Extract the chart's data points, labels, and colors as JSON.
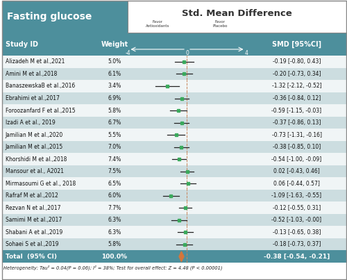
{
  "title_left": "Fasting glucose",
  "title_right": "Std. Mean Difference",
  "studies": [
    {
      "id": "Alizadeh M et al.,2021",
      "weight": "5.0%",
      "smd": -0.19,
      "ci_lo": -0.8,
      "ci_hi": 0.43,
      "smd_str": "-0.19 [-0.80, 0.43]"
    },
    {
      "id": "Amini M et al.,2018",
      "weight": "6.1%",
      "smd": -0.2,
      "ci_lo": -0.73,
      "ci_hi": 0.34,
      "smd_str": "-0.20 [-0.73, 0.34]"
    },
    {
      "id": "BanaszewskaB et al.,2016",
      "weight": "3.4%",
      "smd": -1.32,
      "ci_lo": -2.12,
      "ci_hi": -0.52,
      "smd_str": "-1.32 [-2.12, -0.52]"
    },
    {
      "id": "Ebrahimi et al.,2017",
      "weight": "6.9%",
      "smd": -0.36,
      "ci_lo": -0.84,
      "ci_hi": 0.12,
      "smd_str": "-0.36 [-0.84, 0.12]"
    },
    {
      "id": "Foroozanfard F et al.,2015",
      "weight": "5.8%",
      "smd": -0.59,
      "ci_lo": -1.15,
      "ci_hi": -0.03,
      "smd_str": "-0.59 [-1.15, -0.03]"
    },
    {
      "id": "Izadi A et al., 2019",
      "weight": "6.7%",
      "smd": -0.37,
      "ci_lo": -0.86,
      "ci_hi": 0.13,
      "smd_str": "-0.37 [-0.86, 0.13]"
    },
    {
      "id": "Jamilian M et al.,2020",
      "weight": "5.5%",
      "smd": -0.73,
      "ci_lo": -1.31,
      "ci_hi": -0.16,
      "smd_str": "-0.73 [-1.31, -0.16]"
    },
    {
      "id": "Jamilian M et al.,2015",
      "weight": "7.0%",
      "smd": -0.38,
      "ci_lo": -0.85,
      "ci_hi": 0.1,
      "smd_str": "-0.38 [-0.85, 0.10]"
    },
    {
      "id": "Khorshidi M et al.,2018",
      "weight": "7.4%",
      "smd": -0.54,
      "ci_lo": -1.0,
      "ci_hi": -0.09,
      "smd_str": "-0.54 [-1.00, -0.09]"
    },
    {
      "id": "Mansour et al., A2021",
      "weight": "7.5%",
      "smd": 0.02,
      "ci_lo": -0.43,
      "ci_hi": 0.46,
      "smd_str": "0.02 [-0.43, 0.46]"
    },
    {
      "id": "Mirmasoumi G et al., 2018",
      "weight": "6.5%",
      "smd": 0.06,
      "ci_lo": -0.44,
      "ci_hi": 0.57,
      "smd_str": "0.06 [-0.44, 0.57]"
    },
    {
      "id": "Rafraf M et al.,2012",
      "weight": "6.0%",
      "smd": -1.09,
      "ci_lo": -1.63,
      "ci_hi": -0.55,
      "smd_str": "-1.09 [-1.63, -0.55]"
    },
    {
      "id": "Rezvan N et al.,2017",
      "weight": "7.7%",
      "smd": -0.12,
      "ci_lo": -0.55,
      "ci_hi": 0.31,
      "smd_str": "-0.12 [-0.55, 0.31]"
    },
    {
      "id": "Samimi M et al.,2017",
      "weight": "6.3%",
      "smd": -0.52,
      "ci_lo": -1.03,
      "ci_hi": -0.0,
      "smd_str": "-0.52 [-1.03, -0.00]"
    },
    {
      "id": "Shabani A et al.,2019",
      "weight": "6.3%",
      "smd": -0.13,
      "ci_lo": -0.65,
      "ci_hi": 0.38,
      "smd_str": "-0.13 [-0.65, 0.38]"
    },
    {
      "id": "Sohaei S et al.,2019",
      "weight": "5.8%",
      "smd": -0.18,
      "ci_lo": -0.73,
      "ci_hi": 0.37,
      "smd_str": "-0.18 [-0.73, 0.37]"
    }
  ],
  "total": {
    "id": "Total  (95% CI)",
    "weight": "100.0%",
    "smd": -0.38,
    "ci_lo": -0.54,
    "ci_hi": -0.21,
    "smd_str": "-0.38 [-0.54, -0.21]"
  },
  "heterogeneity": "Heterogeneity: Tau² = 0.04(P = 0.06); I² = 38%; Test for overall effect: Z = 4.48 (P < 0.00001)",
  "x_min": -4,
  "x_max": 4,
  "header_bg": "#4d8f9c",
  "alt_row_bg": "#ccdde0",
  "white_row_bg": "#f0f5f6",
  "total_bg": "#4d8f9c",
  "dot_color": "#3aaa5c",
  "diamond_color": "#d4763b",
  "line_color": "#222222",
  "dashed_line_color": "#c8845a",
  "title_left_bg": "#4d8f9c",
  "title_right_bg": "#e8f0f2",
  "border_color": "#888888",
  "het_color": "#222222"
}
